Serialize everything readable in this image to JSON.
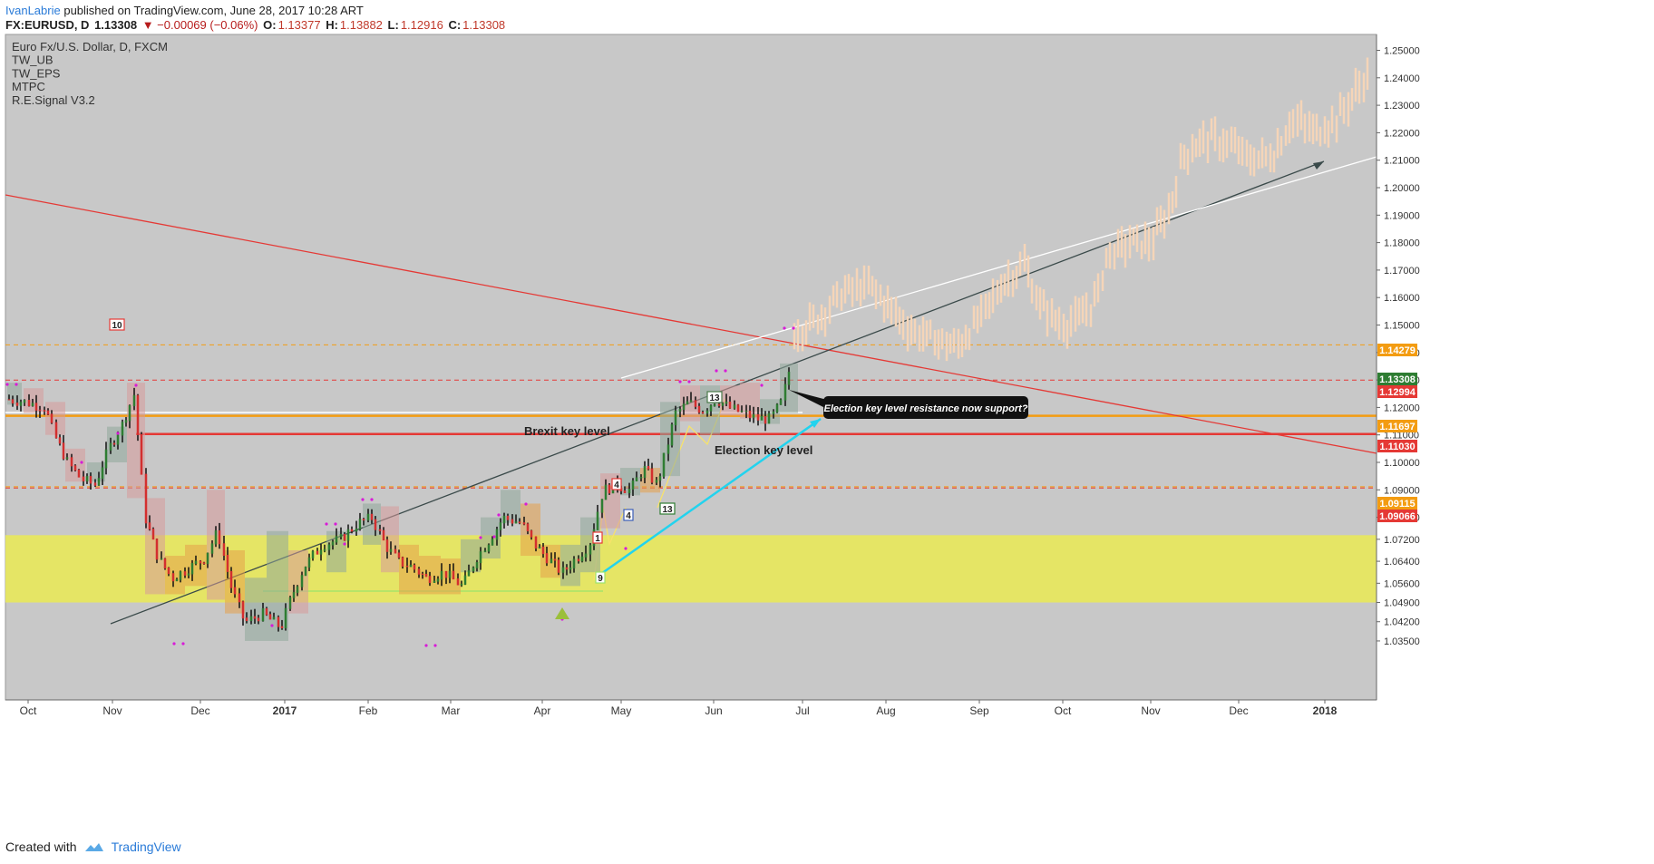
{
  "header": {
    "author": "IvanLabrie",
    "published": "published on TradingView.com, June 28, 2017 10:28 ART",
    "symbol": "FX:EURUSD, D",
    "price": "1.13308",
    "change": "▼ −0.00069 (−0.06%)",
    "o_label": "O:",
    "o_value": "1.13377",
    "h_label": "H:",
    "h_value": "1.13882",
    "l_label": "L:",
    "l_value": "1.12916",
    "c_label": "C:",
    "c_value": "1.13308"
  },
  "legend": [
    "Euro Fx/U.S. Dollar, D, FXCM",
    "TW_UB",
    "TW_EPS",
    "MTPC",
    "R.E.Signal V3.2"
  ],
  "footer": {
    "created_with": "Created with",
    "brand": "TradingView"
  },
  "chart_data": {
    "type": "candlestick",
    "y_range": [
      1.03,
      1.255
    ],
    "y_ticks": [
      "1.25000",
      "1.24000",
      "1.23000",
      "1.22000",
      "1.21000",
      "1.20000",
      "1.19000",
      "1.18000",
      "1.17000",
      "1.16000",
      "1.15000",
      "1.14000",
      "1.13000",
      "1.12000",
      "1.11000",
      "1.10000",
      "1.09000",
      "1.08000",
      "1.07200",
      "1.06400",
      "1.05600",
      "1.04900",
      "1.04200",
      "1.03500"
    ],
    "x_ticks": [
      {
        "label": "Oct",
        "bold": false
      },
      {
        "label": "Nov",
        "bold": false
      },
      {
        "label": "Dec",
        "bold": false
      },
      {
        "label": "2017",
        "bold": true
      },
      {
        "label": "Feb",
        "bold": false
      },
      {
        "label": "Mar",
        "bold": false
      },
      {
        "label": "Apr",
        "bold": false
      },
      {
        "label": "May",
        "bold": false
      },
      {
        "label": "Jun",
        "bold": false
      },
      {
        "label": "Jul",
        "bold": false
      },
      {
        "label": "Aug",
        "bold": false
      },
      {
        "label": "Sep",
        "bold": false
      },
      {
        "label": "Oct",
        "bold": false
      },
      {
        "label": "Nov",
        "bold": false
      },
      {
        "label": "Dec",
        "bold": false
      },
      {
        "label": "2018",
        "bold": true
      }
    ],
    "price_labels": [
      {
        "value": "1.14279",
        "color": "#f39c12"
      },
      {
        "value": "1.13308",
        "color": "#2e7d32"
      },
      {
        "value": "1.12994",
        "color": "#e53935"
      },
      {
        "value": "1.11697",
        "color": "#f39c12"
      },
      {
        "value": "1.11030",
        "color": "#e53935"
      },
      {
        "value": "1.09115",
        "color": "#f39c12"
      },
      {
        "value": "1.09066",
        "color": "#e53935"
      }
    ],
    "annotations": {
      "brexit": "Brexit key level",
      "election": "Election key level",
      "callout": "Election key level resistance now support?"
    },
    "badges": [
      "10",
      "13",
      "4",
      "4",
      "13",
      "1",
      "9"
    ],
    "support_zone": [
      1.049,
      1.0735
    ],
    "colors": {
      "up": "#2e7d32",
      "down": "#d32f2f",
      "projection": "#f5d5b8",
      "zone": "#e8e85a",
      "background": "#c8c8c8"
    }
  }
}
